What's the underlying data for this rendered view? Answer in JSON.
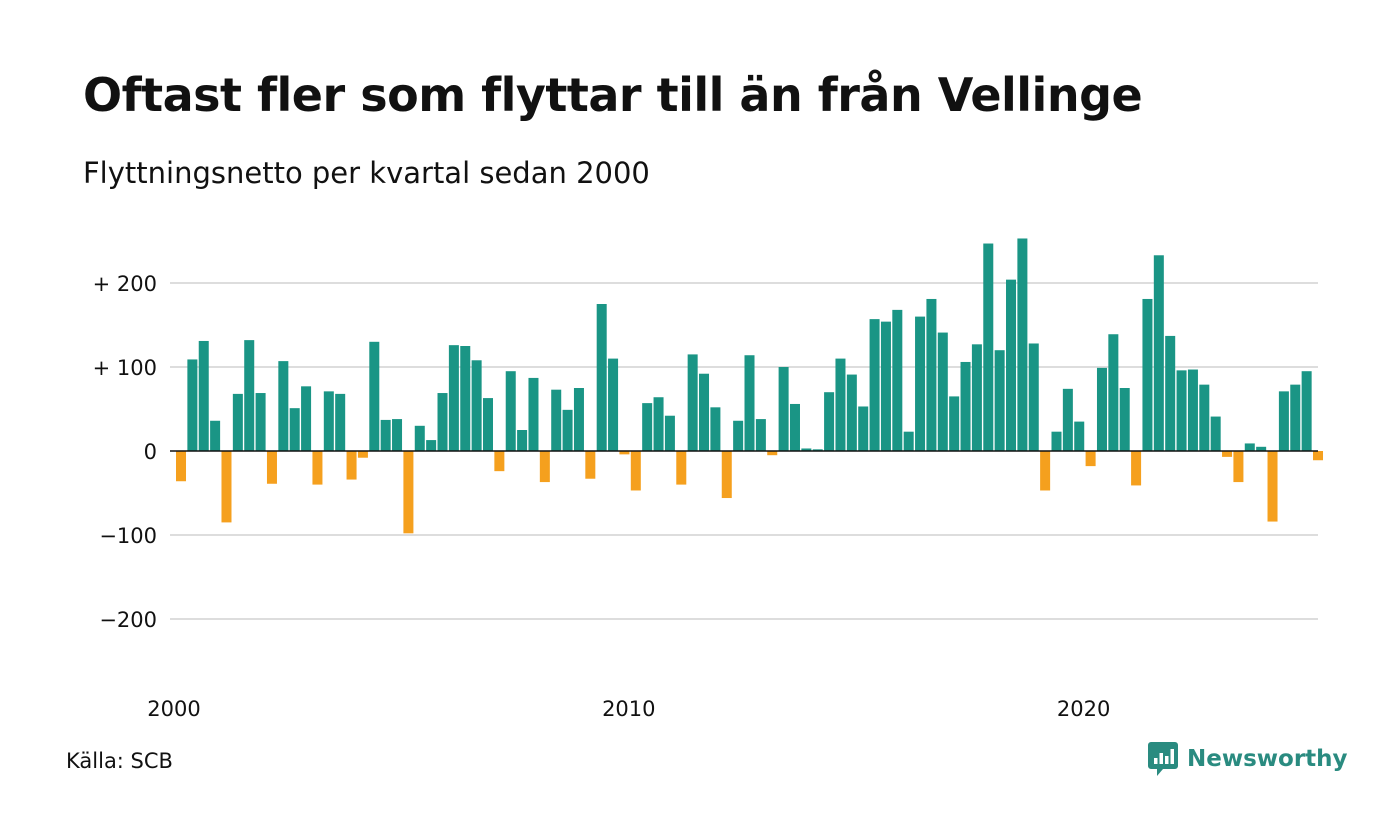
{
  "title": "Oftast fler som flyttar till än från Vellinge",
  "subtitle": "Flyttningsnetto per kvartal sedan 2000",
  "source": "Källa: SCB",
  "brand": {
    "name": "Newsworthy",
    "icon": "newsworthy-logo-icon",
    "color": "#2a8b80"
  },
  "chart_data": {
    "type": "bar",
    "title": "Oftast fler som flyttar till än från Vellinge",
    "subtitle": "Flyttningsnetto per kvartal sedan 2000",
    "xlabel": "",
    "ylabel": "",
    "ylim": [
      -240,
      260
    ],
    "yticks": [
      {
        "value": 200,
        "label": "+ 200"
      },
      {
        "value": 100,
        "label": "+ 100"
      },
      {
        "value": 0,
        "label": "0"
      },
      {
        "value": -100,
        "label": "−100"
      },
      {
        "value": -200,
        "label": "−200"
      }
    ],
    "xticks": [
      {
        "quarter_index": 0,
        "label": "2000"
      },
      {
        "quarter_index": 40,
        "label": "2010"
      },
      {
        "quarter_index": 80,
        "label": "2020"
      }
    ],
    "grid": true,
    "legend": "none",
    "colors": {
      "positive": "#1a9585",
      "negative": "#f5a01e",
      "grid": "#dddddd",
      "zero": "#111111"
    },
    "start": "2000 Q1",
    "frequency": "quarter",
    "values": [
      -36,
      109,
      131,
      36,
      -85,
      68,
      132,
      69,
      -39,
      107,
      51,
      77,
      -40,
      71,
      68,
      -34,
      -8,
      130,
      37,
      38,
      -98,
      30,
      13,
      69,
      126,
      125,
      108,
      63,
      -24,
      95,
      25,
      87,
      -37,
      73,
      49,
      75,
      -33,
      175,
      110,
      -4,
      -47,
      57,
      64,
      42,
      -40,
      115,
      92,
      52,
      -56,
      36,
      114,
      38,
      -5,
      100,
      56,
      3,
      2,
      70,
      110,
      91,
      53,
      157,
      154,
      168,
      23,
      160,
      181,
      141,
      65,
      106,
      127,
      247,
      120,
      204,
      253,
      128,
      -47,
      23,
      74,
      35,
      -18,
      99,
      139,
      75,
      -41,
      181,
      233,
      137,
      96,
      97,
      79,
      41,
      -7,
      -37,
      9,
      5,
      -84,
      71,
      79,
      95,
      -11
    ]
  }
}
